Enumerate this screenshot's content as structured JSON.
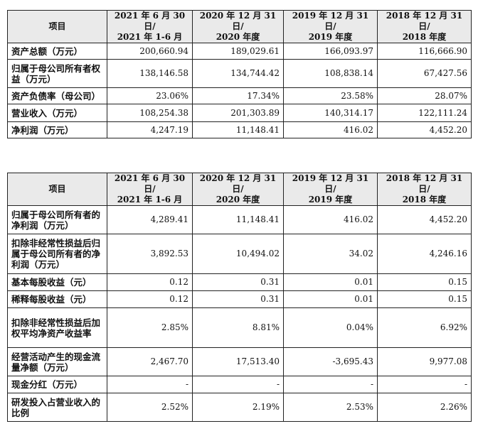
{
  "table1": {
    "header_label": "项目",
    "columns": [
      {
        "line1": "2021 年 6 月 30 日/",
        "line2": "2021 年 1-6 月"
      },
      {
        "line1": "2020 年 12 月 31 日/",
        "line2": "2020 年度"
      },
      {
        "line1": "2019 年 12 月 31 日/",
        "line2": "2019 年度"
      },
      {
        "line1": "2018 年 12 月 31 日/",
        "line2": "2018 年度"
      }
    ],
    "rows": [
      {
        "label": "资产总额（万元）",
        "values": [
          "200,660.94",
          "189,029.61",
          "166,093.97",
          "116,666.90"
        ]
      },
      {
        "label": "归属于母公司所有者权益（万元）",
        "values": [
          "138,146.58",
          "134,744.42",
          "108,838.14",
          "67,427.56"
        ]
      },
      {
        "label": "资产负债率（母公司）",
        "values": [
          "23.06%",
          "17.34%",
          "23.58%",
          "28.07%"
        ]
      },
      {
        "label": "营业收入（万元）",
        "values": [
          "108,254.38",
          "201,303.89",
          "140,314.17",
          "122,111.24"
        ]
      },
      {
        "label": "净利润（万元）",
        "values": [
          "4,247.19",
          "11,148.41",
          "416.02",
          "4,452.20"
        ]
      }
    ]
  },
  "table2": {
    "header_label": "项目",
    "columns": [
      {
        "line1": "2021 年 6 月 30 日/",
        "line2": "2021 年 1-6 月"
      },
      {
        "line1": "2020 年 12 月 31 日/",
        "line2": "2020 年度"
      },
      {
        "line1": "2019 年 12 月 31 日/",
        "line2": "2019 年度"
      },
      {
        "line1": "2018 年 12 月 31 日/",
        "line2": "2018 年度"
      }
    ],
    "rows": [
      {
        "label": "归属于母公司所有者的净利润（万元）",
        "values": [
          "4,289.41",
          "11,148.41",
          "416.02",
          "4,452.20"
        ]
      },
      {
        "label": "扣除非经常性损益后归属于母公司所有者的净利润（万元）",
        "values": [
          "3,892.53",
          "10,494.02",
          "34.02",
          "4,246.16"
        ]
      },
      {
        "label": "基本每股收益（元）",
        "values": [
          "0.12",
          "0.31",
          "0.01",
          "0.15"
        ]
      },
      {
        "label": "稀释每股收益（元）",
        "values": [
          "0.12",
          "0.31",
          "0.01",
          "0.15"
        ]
      },
      {
        "label": "扣除非经常性损益后加权平均净资产收益率",
        "values": [
          "2.85%",
          "8.81%",
          "0.04%",
          "6.92%"
        ]
      },
      {
        "label": "经营活动产生的现金流量净额（万元）",
        "values": [
          "2,467.70",
          "17,513.40",
          "-3,695.43",
          "9,977.08"
        ]
      },
      {
        "label": "现金分红（万元）",
        "values": [
          "-",
          "-",
          "-",
          "-"
        ]
      },
      {
        "label": "研发投入占营业收入的比例",
        "values": [
          "2.52%",
          "2.19%",
          "2.53%",
          "2.26%"
        ]
      }
    ]
  }
}
